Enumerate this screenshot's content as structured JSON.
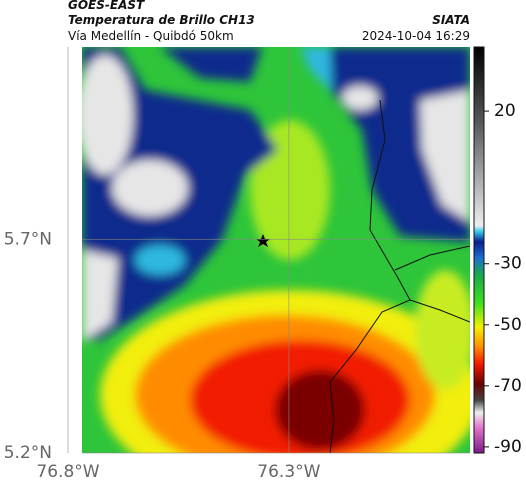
{
  "header": {
    "satellite": "GOES-EAST",
    "product": "Temperatura de Brillo CH13",
    "location": "Vía Medellín - Quibdó 50km",
    "source": "SIATA",
    "datetime": "2024-10-04 16:29"
  },
  "map": {
    "lonlim": [
      -76.8,
      -75.89
    ],
    "latlim": [
      5.2,
      6.15
    ],
    "lon_ticks": [
      {
        "value": -76.8,
        "label": "76.8°W"
      },
      {
        "value": -76.3,
        "label": "76.3°W"
      }
    ],
    "lat_ticks": [
      {
        "value": 5.7,
        "label": "5.7°N"
      },
      {
        "value": 5.2,
        "label": "5.2°N"
      }
    ]
  },
  "colorbar": {
    "lim": [
      -92,
      41
    ],
    "ticks": [
      20,
      -30,
      -50,
      -70,
      -90
    ]
  }
}
